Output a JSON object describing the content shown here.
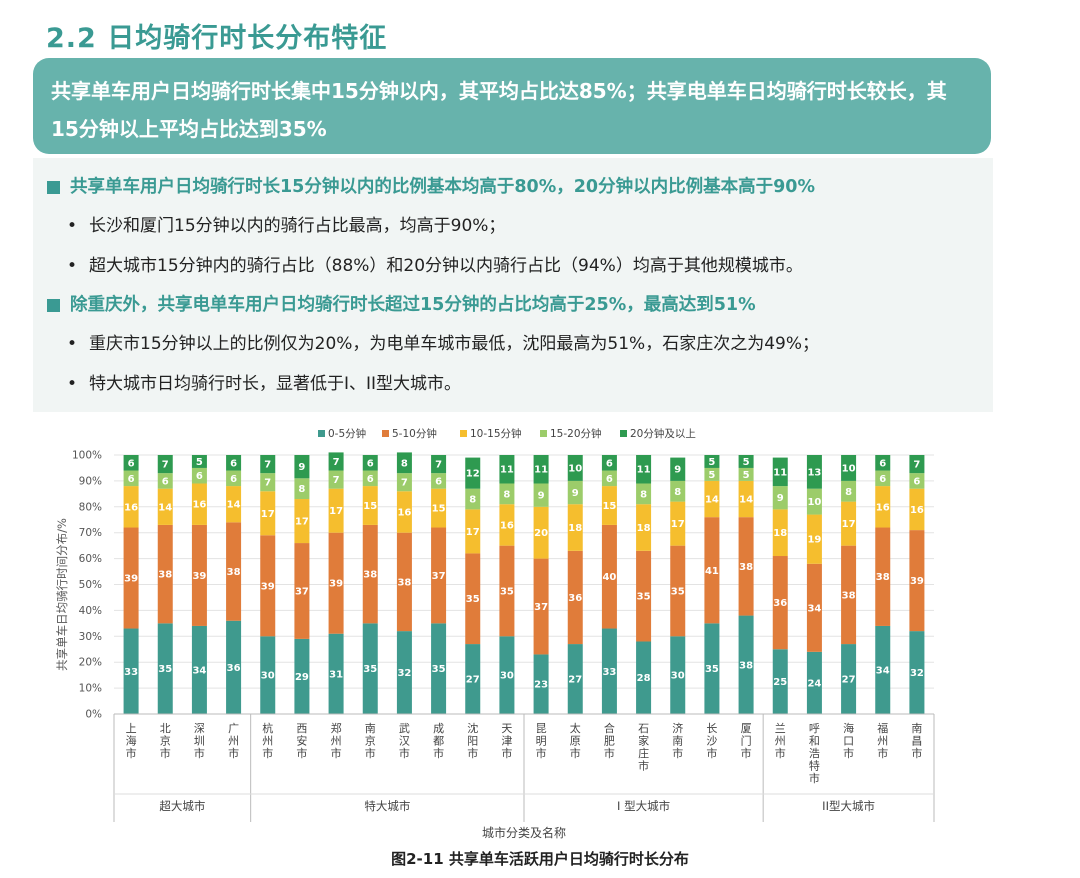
{
  "section_title": "2.2 日均骑行时长分布特征",
  "banner_text": "共享单车用户日均骑行时长集中15分钟以内，其平均占比达85%；共享电单车日均骑行时长较长，其15分钟以上平均占比达到35%",
  "bullets": [
    {
      "head": "共享单车用户日均骑行时长15分钟以内的比例基本均高于80%，20分钟以内比例基本高于90%",
      "items": [
        "长沙和厦门15分钟以内的骑行占比最高，均高于90%；",
        "超大城市15分钟内的骑行占比（88%）和20分钟以内骑行占比（94%）均高于其他规模城市。"
      ]
    },
    {
      "head": "除重庆外，共享电单车用户日均骑行时长超过15分钟的占比均高于25%，最高达到51%",
      "items": [
        "重庆市15分钟以上的比例仅为20%，为电单车城市最低，沈阳最高为51%，石家庄次之为49%；",
        "特大城市日均骑行时长，显著低于I、II型大城市。"
      ]
    }
  ],
  "caption": "图2-11 共享单车活跃用户日均骑行时长分布",
  "chart_data": {
    "type": "bar",
    "stacked": true,
    "categories": [
      "上海市",
      "北京市",
      "深圳市",
      "广州市",
      "杭州市",
      "西安市",
      "郑州市",
      "南京市",
      "武汉市",
      "成都市",
      "沈阳市",
      "天津市",
      "昆明市",
      "太原市",
      "合肥市",
      "石家庄市",
      "济南市",
      "长沙市",
      "厦门市",
      "兰州市",
      "呼和浩特市",
      "海口市",
      "福州市",
      "南昌市"
    ],
    "groups": [
      {
        "name": "超大城市",
        "count": 4
      },
      {
        "name": "特大城市",
        "count": 8
      },
      {
        "name": "I 型大城市",
        "count": 7
      },
      {
        "name": "II型大城市",
        "count": 5
      }
    ],
    "series": [
      {
        "name": "0-5分钟",
        "color": "#3f9a8e",
        "values": [
          33,
          35,
          34,
          36,
          30,
          29,
          31,
          35,
          32,
          35,
          27,
          30,
          23,
          27,
          33,
          28,
          30,
          35,
          38,
          25,
          24,
          27,
          34,
          32
        ]
      },
      {
        "name": "5-10分钟",
        "color": "#e07c3a",
        "values": [
          39,
          38,
          39,
          38,
          39,
          37,
          39,
          38,
          38,
          37,
          35,
          35,
          37,
          36,
          40,
          35,
          35,
          41,
          38,
          36,
          34,
          38,
          38,
          39
        ]
      },
      {
        "name": "10-15分钟",
        "color": "#f5be2e",
        "values": [
          16,
          14,
          16,
          14,
          17,
          17,
          17,
          15,
          16,
          15,
          17,
          16,
          20,
          18,
          15,
          18,
          17,
          14,
          14,
          18,
          19,
          17,
          16,
          16
        ]
      },
      {
        "name": "15-20分钟",
        "color": "#9ccc6a",
        "values": [
          6,
          6,
          6,
          6,
          7,
          8,
          7,
          6,
          7,
          6,
          8,
          8,
          9,
          9,
          6,
          8,
          8,
          5,
          5,
          9,
          10,
          8,
          6,
          6
        ]
      },
      {
        "name": "20分钟及以上",
        "color": "#2e9a50",
        "values": [
          6,
          7,
          5,
          6,
          7,
          9,
          7,
          6,
          8,
          7,
          12,
          11,
          11,
          10,
          6,
          11,
          9,
          5,
          5,
          11,
          13,
          10,
          6,
          7
        ]
      }
    ],
    "ylim": [
      0,
      100
    ],
    "yticks": [
      "0%",
      "10%",
      "20%",
      "30%",
      "40%",
      "50%",
      "60%",
      "70%",
      "80%",
      "90%",
      "100%"
    ],
    "ylabel": "共享单车日均骑行时间分布/%",
    "xlabel": "城市分类及名称",
    "legend_position": "top"
  }
}
